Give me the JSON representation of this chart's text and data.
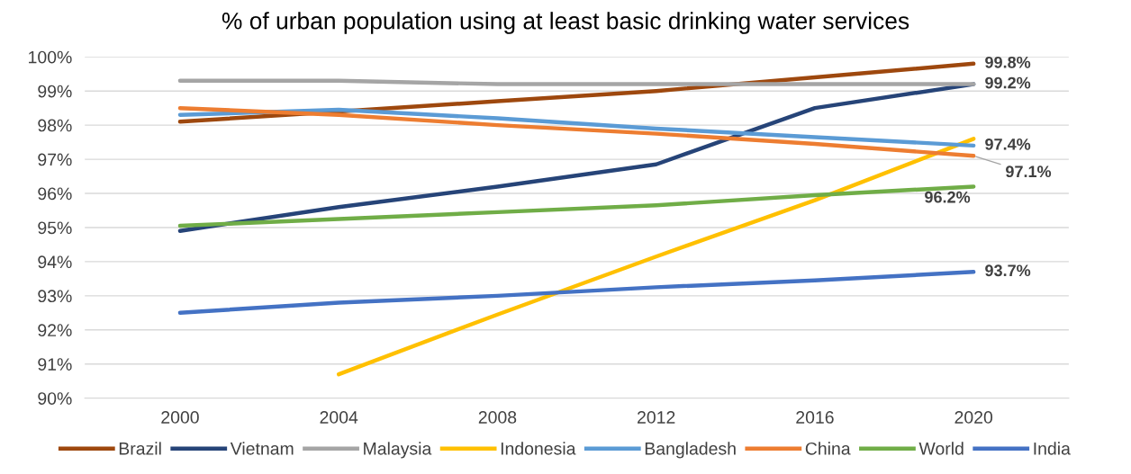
{
  "chart_data": {
    "type": "line",
    "title": "% of urban population using at least basic drinking water services",
    "categories": [
      "2000",
      "2004",
      "2008",
      "2012",
      "2016",
      "2020"
    ],
    "ylim": [
      90,
      100
    ],
    "yticks": [
      {
        "value": 90,
        "label": "90%"
      },
      {
        "value": 91,
        "label": "91%"
      },
      {
        "value": 92,
        "label": "92%"
      },
      {
        "value": 93,
        "label": "93%"
      },
      {
        "value": 94,
        "label": "94%"
      },
      {
        "value": 95,
        "label": "95%"
      },
      {
        "value": 96,
        "label": "96%"
      },
      {
        "value": 97,
        "label": "97%"
      },
      {
        "value": 98,
        "label": "98%"
      },
      {
        "value": 99,
        "label": "99%"
      },
      {
        "value": 100,
        "label": "100%"
      }
    ],
    "grid": "y",
    "legend": "bottom",
    "marker": "none",
    "line_style": "solid",
    "series": [
      {
        "name": "Brazil",
        "color": "#9e480e",
        "values": [
          98.1,
          98.4,
          98.7,
          99.0,
          99.4,
          99.8
        ],
        "value_labels": [
          null,
          null,
          null,
          null,
          null,
          "99.8%"
        ]
      },
      {
        "name": "Vietnam",
        "color": "#264478",
        "values": [
          94.9,
          95.6,
          96.2,
          96.85,
          98.5,
          99.2
        ],
        "value_labels": [
          null,
          null,
          null,
          null,
          null,
          "99.2%"
        ]
      },
      {
        "name": "Malaysia",
        "color": "#a5a5a5",
        "values": [
          99.3,
          99.3,
          99.2,
          99.2,
          99.2,
          99.2
        ],
        "value_labels": [
          null,
          null,
          null,
          null,
          null,
          null
        ]
      },
      {
        "name": "Indonesia",
        "color": "#ffc000",
        "values": [
          null,
          90.7,
          92.45,
          94.15,
          95.8,
          97.6
        ],
        "value_labels": [
          null,
          null,
          null,
          null,
          null,
          null
        ]
      },
      {
        "name": "Bangladesh",
        "color": "#5b9bd5",
        "values": [
          98.3,
          98.45,
          98.2,
          97.9,
          97.65,
          97.4
        ],
        "value_labels": [
          null,
          null,
          null,
          null,
          null,
          "97.4%"
        ]
      },
      {
        "name": "China",
        "color": "#ed7d31",
        "values": [
          98.5,
          98.3,
          98.0,
          97.75,
          97.45,
          97.1
        ],
        "value_labels": [
          null,
          null,
          null,
          null,
          null,
          "97.1%"
        ]
      },
      {
        "name": "World",
        "color": "#70ad47",
        "values": [
          95.05,
          95.25,
          95.45,
          95.65,
          95.95,
          96.2
        ],
        "value_labels": [
          null,
          null,
          null,
          null,
          null,
          "96.2%"
        ]
      },
      {
        "name": "India",
        "color": "#4472c4",
        "values": [
          92.5,
          92.8,
          93.0,
          93.25,
          93.45,
          93.7
        ],
        "value_labels": [
          null,
          null,
          null,
          null,
          null,
          "93.7%"
        ]
      }
    ]
  }
}
